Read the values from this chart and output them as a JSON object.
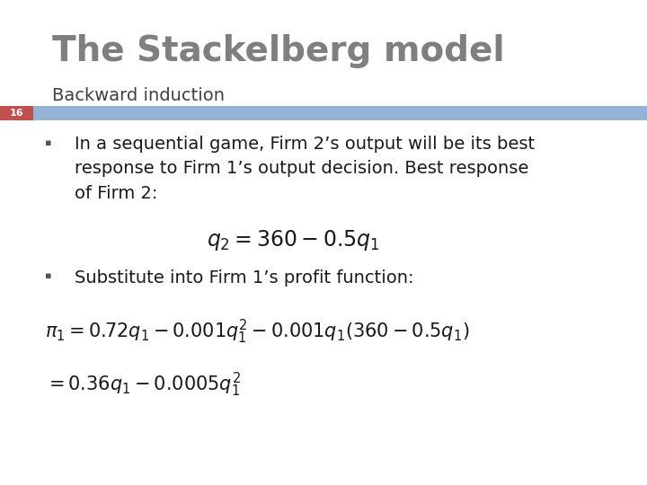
{
  "title": "The Stackelberg model",
  "subtitle": "Backward induction",
  "slide_number": "16",
  "title_color": "#7f7f7f",
  "subtitle_color": "#404040",
  "bar_color": "#C0504D",
  "divider_color": "#95b3d7",
  "background_color": "#ffffff",
  "bullet1_text": "In a sequential game, Firm 2’s output will be its best\nresponse to Firm 1’s output decision. Best response\nof Firm 2:",
  "formula1": "$q_2 = 360 - 0.5q_1$",
  "bullet2_text": "Substitute into Firm 1’s profit function:",
  "formula2a": "$\\pi_1 = 0.72q_1 - 0.001q_1^2 - 0.001q_1(360 - 0.5q_1)$",
  "formula2b": "$= 0.36q_1 - 0.0005q_1^2$",
  "body_fontsize": 14,
  "formula_fontsize": 15,
  "title_fontsize": 28,
  "subtitle_fontsize": 14
}
